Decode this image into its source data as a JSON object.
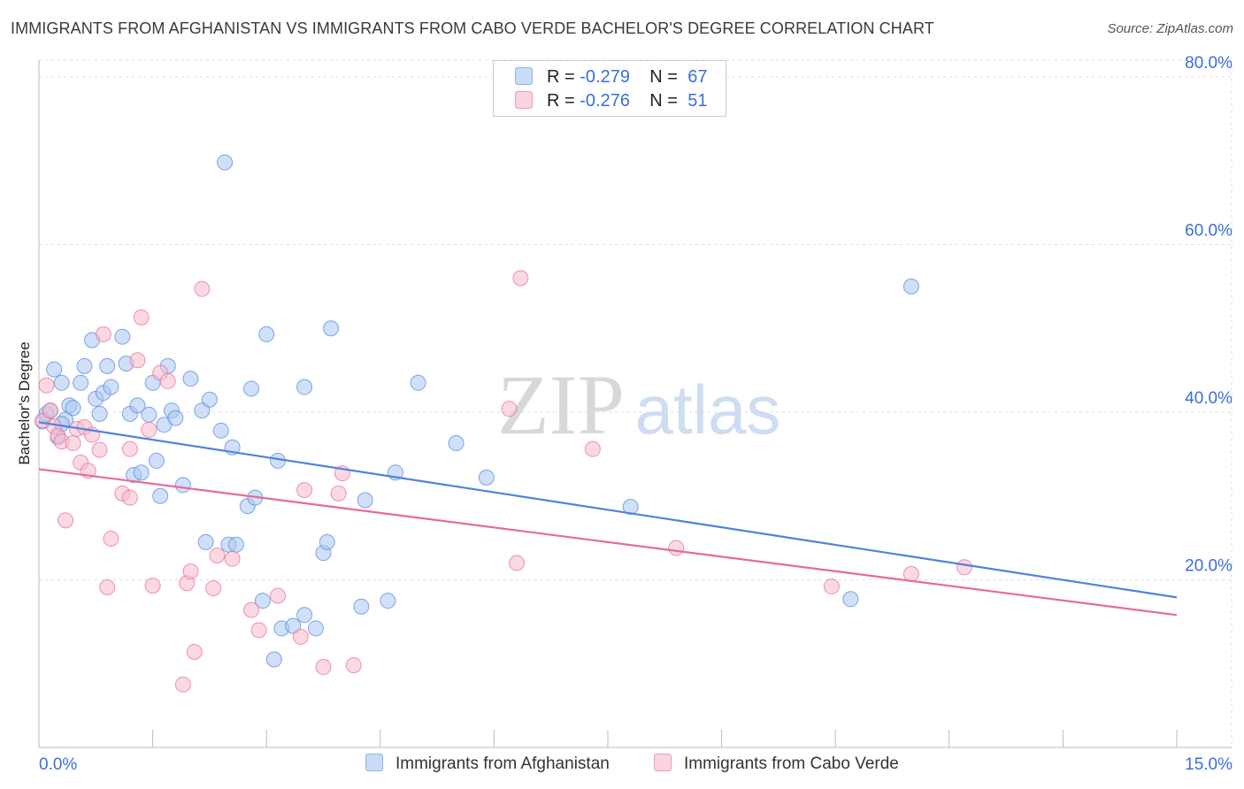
{
  "title": "IMMIGRANTS FROM AFGHANISTAN VS IMMIGRANTS FROM CABO VERDE BACHELOR'S DEGREE CORRELATION CHART",
  "source": "Source: ZipAtlas.com",
  "watermark": {
    "zip": "ZIP",
    "atlas": "atlas"
  },
  "legend": {
    "rows": [
      {
        "r_label": "R = ",
        "r_value": "-0.279",
        "n_label": "N = ",
        "n_value": "67",
        "color": "#a9c6f3"
      },
      {
        "r_label": "R = ",
        "r_value": "-0.276",
        "n_label": "N = ",
        "n_value": "51",
        "color": "#f5b9cc"
      }
    ]
  },
  "bottom_legend": [
    {
      "label": "Immigrants from Afghanistan",
      "color": "#a9c6f3"
    },
    {
      "label": "Immigrants from Cabo Verde",
      "color": "#f5b9cc"
    }
  ],
  "chart_data": {
    "type": "scatter",
    "title": "IMMIGRANTS FROM AFGHANISTAN VS IMMIGRANTS FROM CABO VERDE BACHELOR'S DEGREE CORRELATION CHART",
    "xlabel": "",
    "ylabel": "Bachelor's Degree",
    "xlim": [
      0,
      15
    ],
    "ylim": [
      0,
      82
    ],
    "x_tick_labels": [
      "0.0%",
      "15.0%"
    ],
    "y_ticks": [
      20,
      40,
      60,
      80
    ],
    "y_tick_labels": [
      "20.0%",
      "40.0%",
      "60.0%",
      "80.0%"
    ],
    "grid": true,
    "legend_position": "top-center",
    "series": [
      {
        "name": "Immigrants from Afghanistan",
        "color": "#4d84dc",
        "fill": "#a9c6f3",
        "R": -0.279,
        "N": 67,
        "trend": {
          "x": [
            0,
            15
          ],
          "y": [
            38.8,
            17.9
          ]
        },
        "points": [
          [
            0.05,
            38.9
          ],
          [
            0.1,
            39.8
          ],
          [
            0.15,
            40.2
          ],
          [
            0.2,
            45.1
          ],
          [
            0.25,
            37.0
          ],
          [
            0.3,
            43.5
          ],
          [
            0.35,
            39.1
          ],
          [
            0.4,
            40.8
          ],
          [
            0.45,
            40.5
          ],
          [
            0.55,
            43.5
          ],
          [
            0.6,
            45.5
          ],
          [
            0.7,
            48.6
          ],
          [
            0.75,
            41.6
          ],
          [
            0.8,
            39.8
          ],
          [
            0.85,
            42.3
          ],
          [
            0.9,
            45.5
          ],
          [
            0.95,
            43.0
          ],
          [
            1.1,
            49.0
          ],
          [
            1.15,
            45.8
          ],
          [
            1.2,
            39.8
          ],
          [
            1.25,
            32.5
          ],
          [
            1.3,
            40.8
          ],
          [
            1.35,
            32.8
          ],
          [
            1.45,
            39.7
          ],
          [
            1.5,
            43.5
          ],
          [
            1.55,
            34.2
          ],
          [
            1.6,
            30.0
          ],
          [
            1.65,
            38.5
          ],
          [
            1.7,
            45.5
          ],
          [
            1.75,
            40.2
          ],
          [
            1.8,
            39.3
          ],
          [
            1.9,
            31.3
          ],
          [
            2.0,
            44.0
          ],
          [
            2.15,
            40.2
          ],
          [
            2.2,
            24.5
          ],
          [
            2.25,
            41.5
          ],
          [
            2.4,
            37.8
          ],
          [
            2.45,
            69.8
          ],
          [
            2.5,
            24.2
          ],
          [
            2.55,
            35.8
          ],
          [
            2.6,
            24.2
          ],
          [
            2.75,
            28.8
          ],
          [
            2.8,
            42.8
          ],
          [
            2.85,
            29.8
          ],
          [
            2.95,
            17.5
          ],
          [
            3.0,
            49.3
          ],
          [
            3.1,
            10.5
          ],
          [
            3.15,
            34.2
          ],
          [
            3.2,
            14.2
          ],
          [
            3.35,
            14.5
          ],
          [
            3.5,
            15.8
          ],
          [
            3.5,
            43.0
          ],
          [
            3.65,
            14.2
          ],
          [
            3.75,
            23.2
          ],
          [
            3.8,
            24.5
          ],
          [
            3.85,
            50.0
          ],
          [
            4.25,
            16.8
          ],
          [
            4.3,
            29.5
          ],
          [
            4.6,
            17.5
          ],
          [
            4.7,
            32.8
          ],
          [
            5.0,
            43.5
          ],
          [
            5.5,
            36.3
          ],
          [
            5.9,
            32.2
          ],
          [
            7.8,
            28.7
          ],
          [
            10.7,
            17.7
          ],
          [
            11.5,
            55.0
          ],
          [
            0.3,
            38.6
          ]
        ]
      },
      {
        "name": "Immigrants from Cabo Verde",
        "color": "#e86a94",
        "fill": "#f5b9cc",
        "R": -0.276,
        "N": 51,
        "trend": {
          "x": [
            0,
            15
          ],
          "y": [
            33.2,
            15.8
          ]
        },
        "points": [
          [
            0.05,
            39.0
          ],
          [
            0.1,
            43.2
          ],
          [
            0.15,
            40.2
          ],
          [
            0.2,
            38.3
          ],
          [
            0.25,
            37.2
          ],
          [
            0.3,
            36.5
          ],
          [
            0.35,
            27.1
          ],
          [
            0.45,
            36.3
          ],
          [
            0.5,
            38.0
          ],
          [
            0.55,
            34.0
          ],
          [
            0.6,
            38.2
          ],
          [
            0.65,
            33.0
          ],
          [
            0.7,
            37.3
          ],
          [
            0.8,
            35.5
          ],
          [
            0.85,
            49.3
          ],
          [
            0.9,
            19.1
          ],
          [
            0.95,
            24.9
          ],
          [
            1.1,
            30.3
          ],
          [
            1.2,
            29.8
          ],
          [
            1.2,
            35.6
          ],
          [
            1.3,
            46.2
          ],
          [
            1.35,
            51.3
          ],
          [
            1.45,
            37.9
          ],
          [
            1.5,
            19.3
          ],
          [
            1.6,
            44.7
          ],
          [
            1.7,
            43.7
          ],
          [
            1.9,
            7.5
          ],
          [
            1.95,
            19.6
          ],
          [
            2.0,
            21.0
          ],
          [
            2.05,
            11.4
          ],
          [
            2.15,
            54.7
          ],
          [
            2.3,
            19.0
          ],
          [
            2.35,
            22.9
          ],
          [
            2.55,
            22.5
          ],
          [
            2.8,
            16.4
          ],
          [
            2.9,
            14.0
          ],
          [
            3.15,
            18.1
          ],
          [
            3.45,
            13.2
          ],
          [
            3.5,
            30.7
          ],
          [
            3.75,
            9.6
          ],
          [
            3.95,
            30.3
          ],
          [
            4.0,
            32.7
          ],
          [
            4.15,
            9.8
          ],
          [
            6.2,
            40.4
          ],
          [
            6.3,
            22.0
          ],
          [
            6.35,
            56.0
          ],
          [
            7.3,
            35.6
          ],
          [
            8.4,
            23.8
          ],
          [
            10.45,
            19.2
          ],
          [
            11.5,
            20.7
          ],
          [
            12.2,
            21.5
          ]
        ]
      }
    ]
  }
}
